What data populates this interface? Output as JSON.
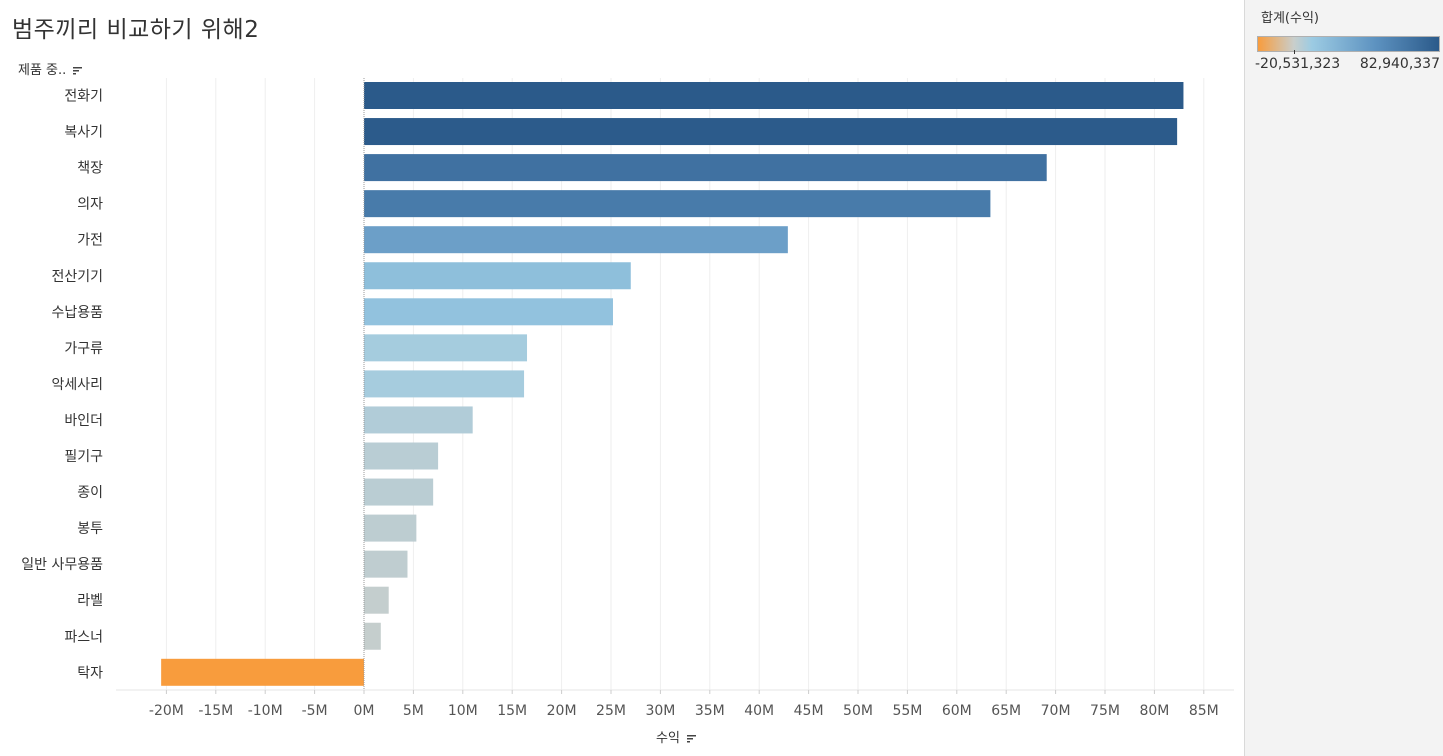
{
  "title": "범주끼리 비교하기 위해2",
  "row_header": "제품 중..",
  "x_axis_title": "수익",
  "legend": {
    "title": "합계(수익)",
    "min_label": "-20,531,323",
    "max_label": "82,940,337",
    "colors": {
      "negative": "#f89c3d",
      "neutral": "#c9cecb",
      "light_blue": "#9ccbe3",
      "mid_blue": "#5d92c0",
      "dark_blue": "#2b5a8a"
    }
  },
  "chart_data": {
    "type": "bar",
    "orientation": "horizontal",
    "title": "범주끼리 비교하기 위해2",
    "ylabel": "제품 중..",
    "xlabel": "수익",
    "categories": [
      "전화기",
      "복사기",
      "책장",
      "의자",
      "가전",
      "전산기기",
      "수납용품",
      "가구류",
      "악세사리",
      "바인더",
      "필기구",
      "종이",
      "봉투",
      "일반 사무용품",
      "라벨",
      "파스너",
      "탁자"
    ],
    "values": [
      82940337,
      82300000,
      69100000,
      63400000,
      42900000,
      27000000,
      25200000,
      16500000,
      16200000,
      11000000,
      7500000,
      7000000,
      5300000,
      4400000,
      2500000,
      1700000,
      -20531323
    ],
    "xlim": [
      -25000000,
      88000000
    ],
    "xticks": [
      -20000000,
      -15000000,
      -10000000,
      -5000000,
      0,
      5000000,
      10000000,
      15000000,
      20000000,
      25000000,
      30000000,
      35000000,
      40000000,
      45000000,
      50000000,
      55000000,
      60000000,
      65000000,
      70000000,
      75000000,
      80000000,
      85000000
    ],
    "xtick_labels": [
      "-20M",
      "-15M",
      "-10M",
      "-5M",
      "0M",
      "5M",
      "10M",
      "15M",
      "20M",
      "25M",
      "30M",
      "35M",
      "40M",
      "45M",
      "50M",
      "55M",
      "60M",
      "65M",
      "70M",
      "75M",
      "80M",
      "85M"
    ],
    "grid": "vertical",
    "sorted": "descending"
  }
}
